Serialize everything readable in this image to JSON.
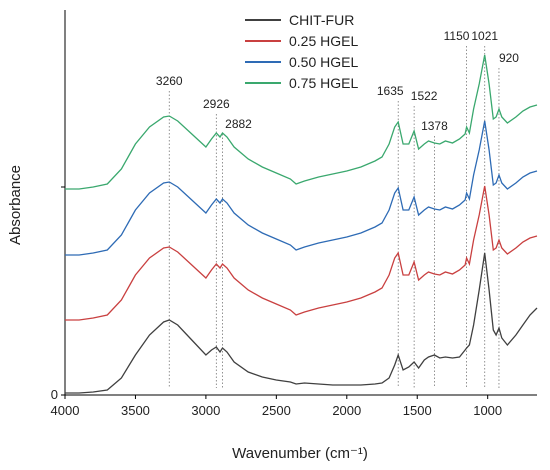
{
  "chart_data": {
    "type": "line",
    "xlabel": "Wavenumber (cm⁻¹)",
    "ylabel": "Absorbance",
    "x": [
      4000,
      3900,
      3800,
      3700,
      3600,
      3500,
      3400,
      3300,
      3260,
      3200,
      3100,
      3000,
      2960,
      2926,
      2900,
      2882,
      2850,
      2800,
      2700,
      2600,
      2500,
      2400,
      2360,
      2300,
      2200,
      2100,
      2000,
      1900,
      1800,
      1750,
      1700,
      1660,
      1635,
      1600,
      1560,
      1522,
      1490,
      1450,
      1420,
      1378,
      1340,
      1300,
      1250,
      1200,
      1160,
      1150,
      1130,
      1100,
      1060,
      1021,
      990,
      960,
      940,
      920,
      900,
      860,
      800,
      750,
      700,
      650
    ],
    "series": [
      {
        "name": "CHIT-FUR",
        "color": "#404040",
        "values": [
          0.02,
          0.02,
          0.03,
          0.05,
          0.17,
          0.4,
          0.6,
          0.73,
          0.75,
          0.7,
          0.55,
          0.4,
          0.45,
          0.48,
          0.43,
          0.47,
          0.43,
          0.33,
          0.23,
          0.18,
          0.15,
          0.13,
          0.11,
          0.12,
          0.11,
          0.1,
          0.1,
          0.1,
          0.11,
          0.12,
          0.17,
          0.3,
          0.4,
          0.25,
          0.28,
          0.33,
          0.27,
          0.35,
          0.38,
          0.4,
          0.37,
          0.38,
          0.37,
          0.38,
          0.45,
          0.47,
          0.5,
          0.7,
          1.05,
          1.42,
          1.05,
          0.65,
          0.6,
          0.67,
          0.57,
          0.5,
          0.6,
          0.7,
          0.8,
          0.87
        ]
      },
      {
        "name": "0.25 HGEL",
        "color": "#c94040",
        "values": [
          0.75,
          0.75,
          0.77,
          0.8,
          0.95,
          1.2,
          1.37,
          1.47,
          1.48,
          1.43,
          1.3,
          1.17,
          1.25,
          1.31,
          1.27,
          1.31,
          1.27,
          1.17,
          1.05,
          0.97,
          0.91,
          0.85,
          0.8,
          0.83,
          0.87,
          0.9,
          0.93,
          0.97,
          1.03,
          1.07,
          1.2,
          1.37,
          1.42,
          1.2,
          1.2,
          1.33,
          1.15,
          1.2,
          1.23,
          1.21,
          1.2,
          1.23,
          1.21,
          1.25,
          1.3,
          1.37,
          1.31,
          1.55,
          1.8,
          2.09,
          1.8,
          1.45,
          1.47,
          1.55,
          1.47,
          1.41,
          1.47,
          1.53,
          1.57,
          1.59
        ]
      },
      {
        "name": "0.50 HGEL",
        "color": "#2e6bb5",
        "values": [
          1.4,
          1.4,
          1.42,
          1.45,
          1.6,
          1.85,
          2.02,
          2.12,
          2.13,
          2.08,
          1.95,
          1.82,
          1.9,
          1.96,
          1.92,
          1.96,
          1.92,
          1.82,
          1.7,
          1.62,
          1.56,
          1.5,
          1.45,
          1.48,
          1.52,
          1.55,
          1.58,
          1.62,
          1.68,
          1.72,
          1.85,
          2.02,
          2.07,
          1.85,
          1.85,
          1.98,
          1.8,
          1.85,
          1.88,
          1.86,
          1.85,
          1.88,
          1.86,
          1.9,
          1.95,
          2.02,
          1.96,
          2.2,
          2.45,
          2.74,
          2.45,
          2.1,
          2.12,
          2.2,
          2.12,
          2.06,
          2.12,
          2.18,
          2.22,
          2.24
        ]
      },
      {
        "name": "0.75 HGEL",
        "color": "#3aa86e",
        "values": [
          2.06,
          2.06,
          2.08,
          2.11,
          2.26,
          2.51,
          2.68,
          2.78,
          2.79,
          2.74,
          2.61,
          2.48,
          2.56,
          2.62,
          2.58,
          2.62,
          2.58,
          2.48,
          2.36,
          2.28,
          2.22,
          2.16,
          2.11,
          2.14,
          2.18,
          2.21,
          2.24,
          2.28,
          2.34,
          2.38,
          2.51,
          2.68,
          2.73,
          2.51,
          2.51,
          2.64,
          2.46,
          2.51,
          2.54,
          2.52,
          2.51,
          2.54,
          2.52,
          2.56,
          2.61,
          2.68,
          2.62,
          2.86,
          3.11,
          3.4,
          3.11,
          2.76,
          2.78,
          2.86,
          2.78,
          2.72,
          2.78,
          2.84,
          2.88,
          2.9
        ]
      }
    ],
    "xlim": [
      4000,
      650
    ],
    "xticks": [
      4000,
      3500,
      3000,
      2500,
      2000,
      1500,
      1000
    ],
    "ylim": [
      0,
      3.85
    ],
    "yticks": [
      0
    ],
    "y_unlabeled_ticks": [
      2.08
    ],
    "annotations": [
      3260,
      2926,
      2882,
      1635,
      1522,
      1378,
      1150,
      1021,
      920
    ],
    "legend": "upper center",
    "grid": false
  }
}
